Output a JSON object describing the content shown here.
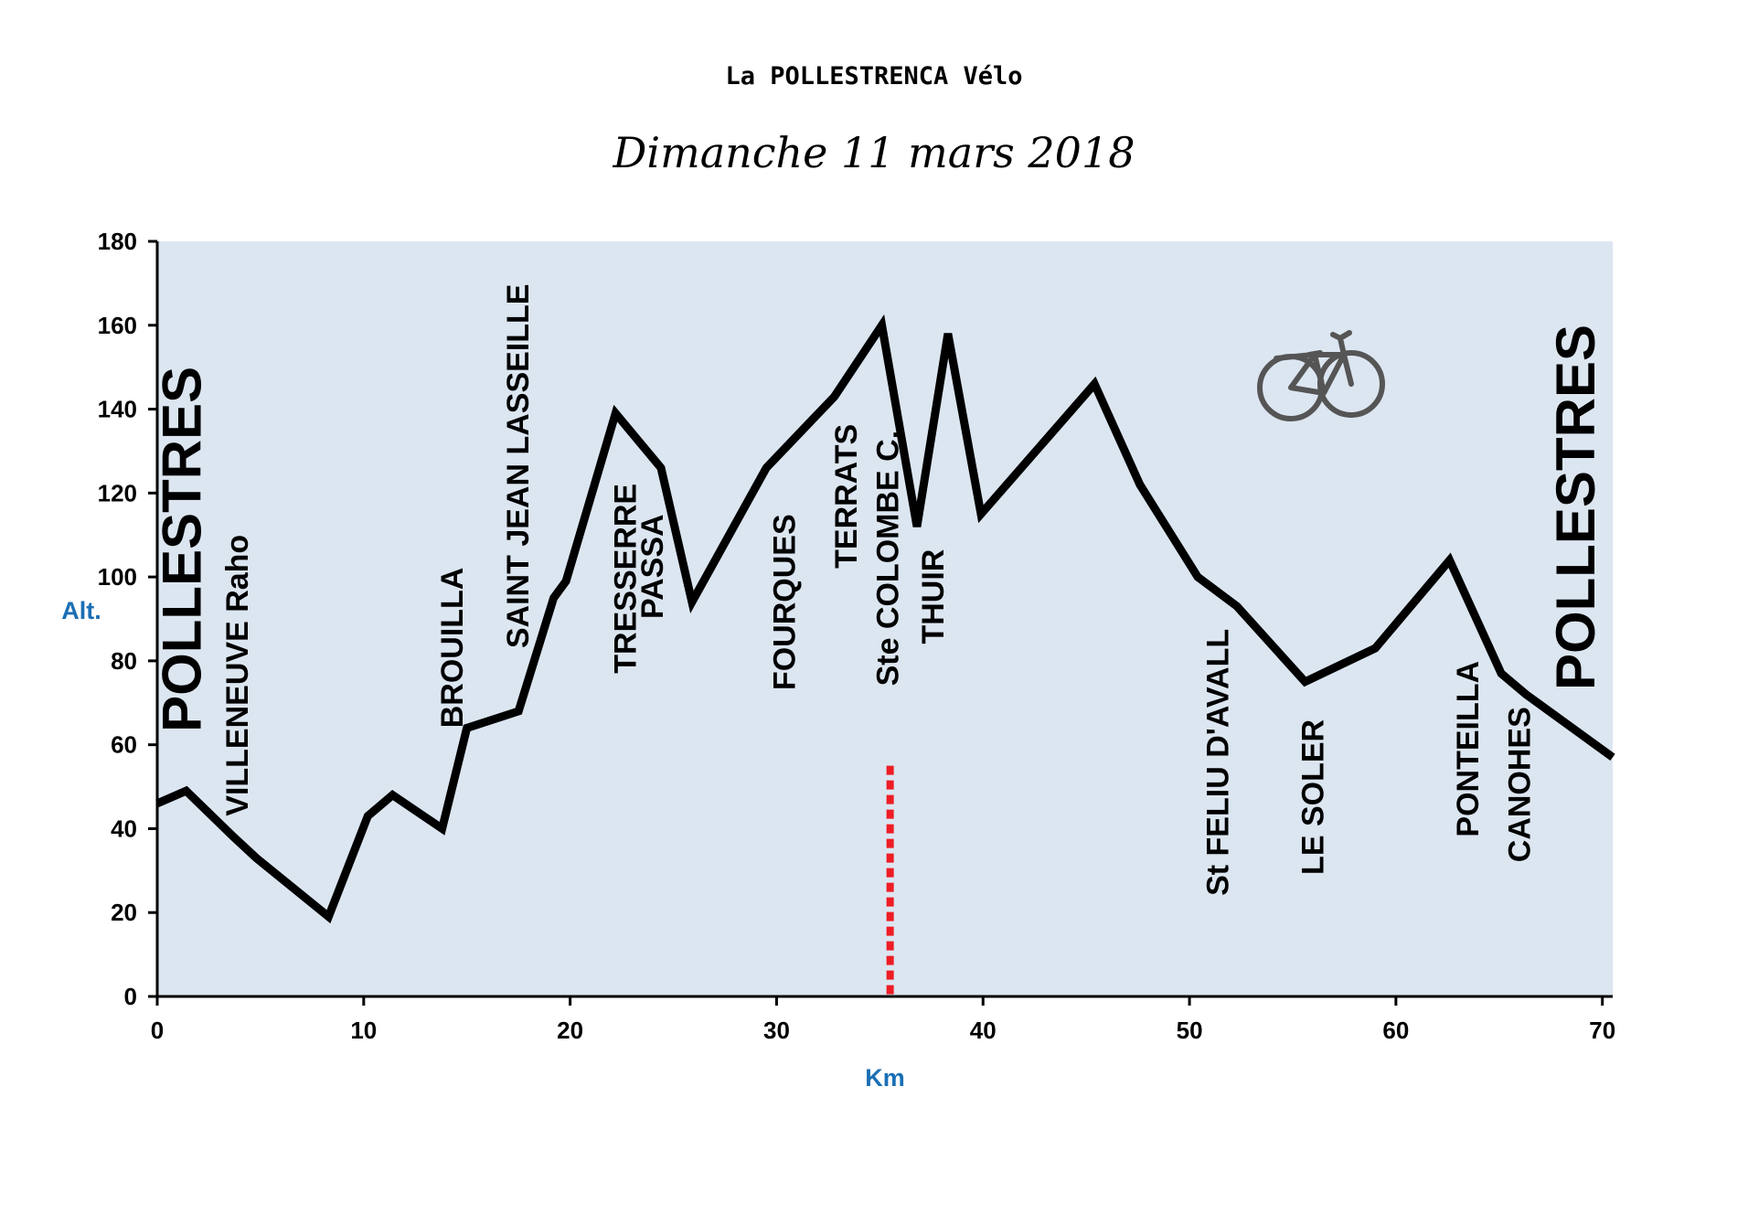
{
  "header": {
    "title": "La POLLESTRENCA Vélo",
    "subtitle": "Dimanche 11 mars 2018"
  },
  "colors": {
    "plot_background": "#dce6f1",
    "line": "#000000",
    "axis_label": "#1a6fb5",
    "marker": "#ee1c24"
  },
  "icon": "bicycle-icon",
  "chart_data": {
    "type": "line",
    "title": "La POLLESTRENCA Vélo",
    "subtitle": "Dimanche 11 mars 2018",
    "xlabel": "Km",
    "ylabel": "Alt.",
    "xlim": [
      0,
      70.5
    ],
    "ylim": [
      0,
      180
    ],
    "xticks": [
      0,
      10,
      20,
      30,
      40,
      50,
      60,
      70
    ],
    "yticks": [
      0,
      20,
      40,
      60,
      80,
      100,
      120,
      140,
      160,
      180
    ],
    "grid": false,
    "series": [
      {
        "x": [
          0,
          1.4,
          3.7,
          4.8,
          8.3,
          10.2,
          11.4,
          13.8,
          15,
          17.5,
          19.2,
          19.8,
          22.2,
          24.4,
          25.9,
          29.5,
          32.8,
          35.1,
          36.8,
          38.3,
          39.9,
          45.4,
          47.6,
          50.4,
          52.3,
          55.6,
          59,
          62.6,
          65.1,
          66.3,
          70.5
        ],
        "y": [
          46,
          49,
          38,
          33,
          19,
          43,
          48,
          40,
          64,
          68,
          95,
          99,
          139,
          126,
          94,
          126,
          143,
          160,
          112,
          158,
          115,
          146,
          122,
          100,
          93,
          75,
          83,
          104,
          77,
          72,
          57
        ]
      }
    ],
    "marker_line": {
      "x": 35.5,
      "y_top": 55
    },
    "annotations": [
      {
        "text": "POLLESTRES",
        "x": 1.2,
        "y_base": 63,
        "size": "large"
      },
      {
        "text": "VILLENEUVE Raho",
        "x": 3.9,
        "y_base": 43,
        "size": "normal"
      },
      {
        "text": "BROUILLA",
        "x": 14.3,
        "y_base": 64,
        "size": "normal"
      },
      {
        "text": "SAINT JEAN LASSEILLE",
        "x": 17.5,
        "y_base": 83,
        "size": "normal"
      },
      {
        "text": "TRESSERRE",
        "x": 22.7,
        "y_base": 77,
        "size": "normal"
      },
      {
        "text": "PASSA",
        "x": 24,
        "y_base": 90,
        "size": "normal"
      },
      {
        "text": "FOURQUES",
        "x": 30.4,
        "y_base": 73,
        "size": "normal"
      },
      {
        "text": "TERRATS",
        "x": 33.4,
        "y_base": 102,
        "size": "normal"
      },
      {
        "text": "Ste COLOMBE C.",
        "x": 35.4,
        "y_base": 74,
        "size": "normal"
      },
      {
        "text": "THUIR",
        "x": 37.6,
        "y_base": 84,
        "size": "normal"
      },
      {
        "text": "St FELIU D'AVALL",
        "x": 51.4,
        "y_base": 24,
        "size": "normal"
      },
      {
        "text": "LE SOLER",
        "x": 56,
        "y_base": 29,
        "size": "normal"
      },
      {
        "text": "PONTEILLA",
        "x": 63.5,
        "y_base": 38,
        "size": "normal"
      },
      {
        "text": "CANOHES",
        "x": 66,
        "y_base": 32,
        "size": "normal"
      },
      {
        "text": "POLLESTRES",
        "x": 68.7,
        "y_base": 73,
        "size": "large"
      }
    ]
  }
}
